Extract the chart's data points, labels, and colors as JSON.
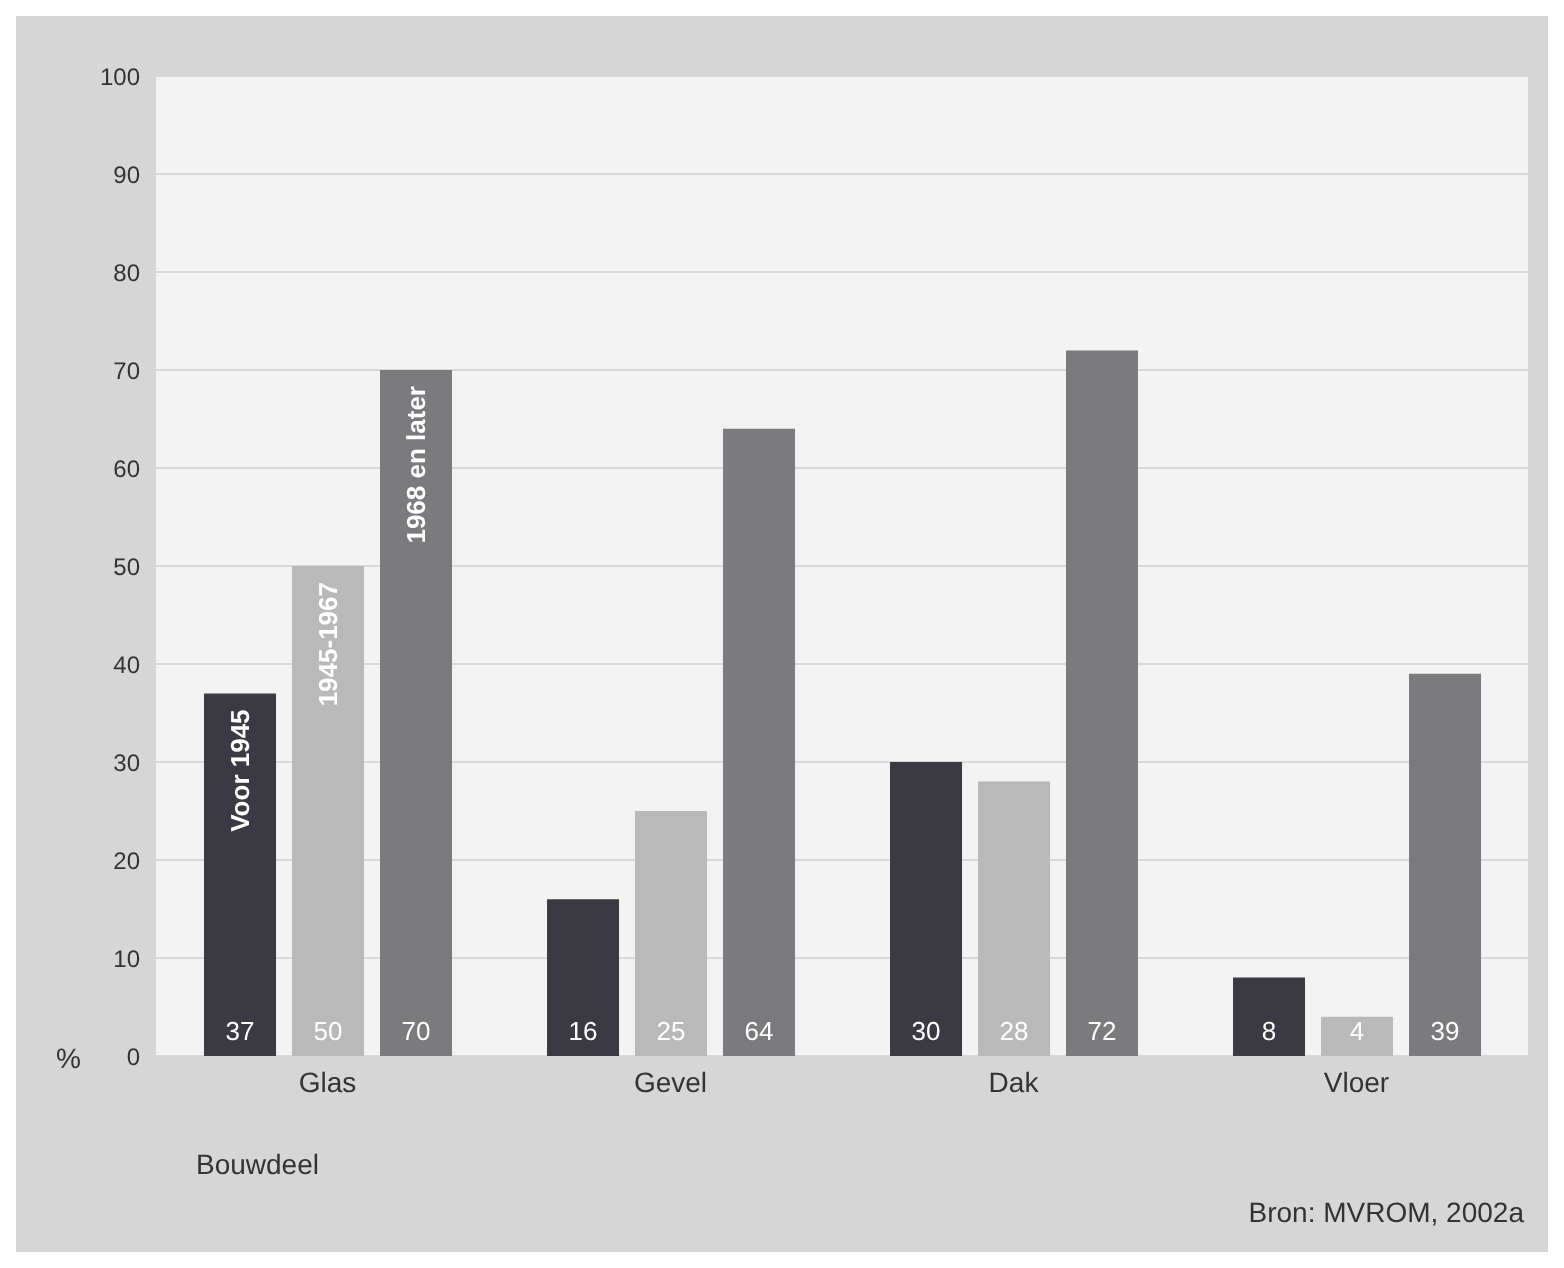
{
  "chart_data": {
    "type": "bar",
    "xlabel": "Bouwdeel",
    "ylabel": "%",
    "categories": [
      "Glas",
      "Gevel",
      "Dak",
      "Vloer"
    ],
    "series": [
      {
        "name": "Voor 1945",
        "color": "#3b3a42",
        "values": [
          37,
          16,
          30,
          8
        ]
      },
      {
        "name": "1945-1967",
        "color": "#b9b9b9",
        "values": [
          50,
          25,
          28,
          4
        ]
      },
      {
        "name": "1968 en later",
        "color": "#7b7b7d",
        "values": [
          70,
          64,
          72,
          39
        ]
      }
    ],
    "ylim": [
      0,
      100
    ],
    "yticks": [
      0,
      10,
      20,
      30,
      40,
      50,
      60,
      70,
      80,
      90,
      100
    ],
    "grid": "y",
    "data_labels": true,
    "legend": false,
    "annotations": [
      "Bron: MVROM, 2002a"
    ]
  }
}
